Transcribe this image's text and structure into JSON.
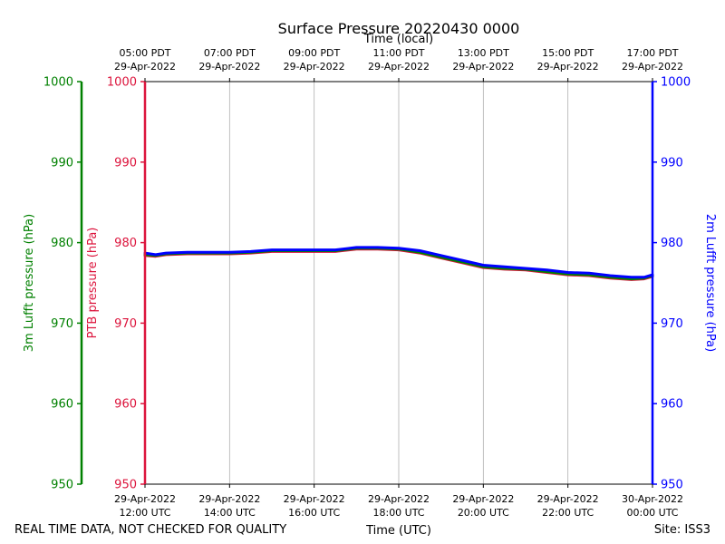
{
  "chart_data": {
    "type": "line",
    "title": "Surface Pressure 20220430 0000",
    "xlabel_bottom": "Time (UTC)",
    "xlabel_top": "Time (local)",
    "ylabel_outer_left": "3m Lufft pressure (hPa)",
    "ylabel_left": "PTB pressure (hPa)",
    "ylabel_right": "2m Lufft pressure (hPa)",
    "xlim_hours_utc": [
      12,
      24
    ],
    "ylim": [
      950,
      1000
    ],
    "y_ticks": [
      950,
      960,
      970,
      980,
      990,
      1000
    ],
    "grid": "vertical",
    "x_ticks_bottom": [
      {
        "x": 12,
        "line1": "29-Apr-2022",
        "line2": "12:00 UTC"
      },
      {
        "x": 14,
        "line1": "29-Apr-2022",
        "line2": "14:00 UTC"
      },
      {
        "x": 16,
        "line1": "29-Apr-2022",
        "line2": "16:00 UTC"
      },
      {
        "x": 18,
        "line1": "29-Apr-2022",
        "line2": "18:00 UTC"
      },
      {
        "x": 20,
        "line1": "29-Apr-2022",
        "line2": "20:00 UTC"
      },
      {
        "x": 22,
        "line1": "29-Apr-2022",
        "line2": "22:00 UTC"
      },
      {
        "x": 24,
        "line1": "30-Apr-2022",
        "line2": "00:00 UTC"
      }
    ],
    "x_ticks_top": [
      {
        "x": 12,
        "line1": "05:00 PDT",
        "line2": "29-Apr-2022"
      },
      {
        "x": 14,
        "line1": "07:00 PDT",
        "line2": "29-Apr-2022"
      },
      {
        "x": 16,
        "line1": "09:00 PDT",
        "line2": "29-Apr-2022"
      },
      {
        "x": 18,
        "line1": "11:00 PDT",
        "line2": "29-Apr-2022"
      },
      {
        "x": 20,
        "line1": "13:00 PDT",
        "line2": "29-Apr-2022"
      },
      {
        "x": 22,
        "line1": "15:00 PDT",
        "line2": "29-Apr-2022"
      },
      {
        "x": 24,
        "line1": "17:00 PDT",
        "line2": "29-Apr-2022"
      }
    ],
    "series": [
      {
        "name": "PTB pressure",
        "color": "#dc143c",
        "x": [
          12.0,
          12.25,
          12.5,
          13.0,
          13.5,
          14.0,
          14.5,
          15.0,
          15.5,
          16.0,
          16.5,
          17.0,
          17.5,
          18.0,
          18.5,
          19.0,
          19.5,
          20.0,
          20.5,
          21.0,
          21.5,
          22.0,
          22.5,
          23.0,
          23.5,
          23.8,
          24.0
        ],
        "y": [
          978.4,
          978.3,
          978.5,
          978.6,
          978.6,
          978.6,
          978.7,
          978.9,
          978.9,
          978.9,
          978.9,
          979.2,
          979.2,
          979.1,
          978.7,
          978.1,
          977.5,
          976.9,
          976.7,
          976.6,
          976.3,
          976.0,
          975.9,
          975.6,
          975.4,
          975.5,
          975.8
        ]
      },
      {
        "name": "3m Lufft pressure",
        "color": "#008000",
        "x": [
          12.0,
          12.25,
          12.5,
          13.0,
          13.5,
          14.0,
          14.5,
          15.0,
          15.5,
          16.0,
          16.5,
          17.0,
          17.5,
          18.0,
          18.5,
          19.0,
          19.5,
          20.0,
          20.5,
          21.0,
          21.5,
          22.0,
          22.5,
          23.0,
          23.5,
          23.8,
          24.0
        ],
        "y": [
          978.5,
          978.4,
          978.6,
          978.7,
          978.7,
          978.7,
          978.8,
          979.0,
          979.0,
          979.0,
          979.0,
          979.3,
          979.3,
          979.2,
          978.8,
          978.2,
          977.6,
          977.0,
          976.8,
          976.7,
          976.4,
          976.1,
          976.0,
          975.7,
          975.5,
          975.6,
          975.9
        ]
      },
      {
        "name": "2m Lufft pressure",
        "color": "#0000ff",
        "x": [
          12.0,
          12.25,
          12.5,
          13.0,
          13.5,
          14.0,
          14.5,
          15.0,
          15.5,
          16.0,
          16.5,
          17.0,
          17.5,
          18.0,
          18.5,
          19.0,
          19.5,
          20.0,
          20.5,
          21.0,
          21.5,
          22.0,
          22.5,
          23.0,
          23.5,
          23.8,
          24.0
        ],
        "y": [
          978.7,
          978.5,
          978.7,
          978.8,
          978.8,
          978.8,
          978.9,
          979.1,
          979.1,
          979.1,
          979.1,
          979.4,
          979.4,
          979.3,
          979.0,
          978.4,
          977.8,
          977.2,
          977.0,
          976.8,
          976.6,
          976.3,
          976.2,
          975.9,
          975.7,
          975.7,
          976.0
        ]
      }
    ]
  },
  "colors": {
    "left_axis": "#dc143c",
    "outer_left_axis": "#008000",
    "right_axis": "#0000ff",
    "grid": "#b0b0b0"
  },
  "footer": {
    "left": "REAL TIME DATA, NOT CHECKED FOR QUALITY",
    "right": "Site: ISS3"
  }
}
